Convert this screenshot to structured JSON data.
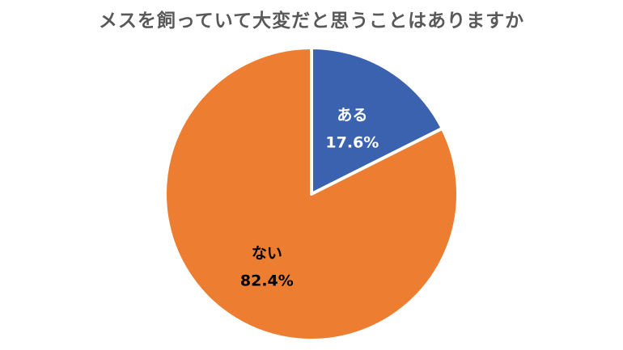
{
  "chart_data": {
    "type": "pie",
    "title": "メスを飼っていて大変だと思うことはありますか",
    "slices": [
      {
        "label": "ある",
        "value": 17.6,
        "value_label": "17.6%",
        "color": "#3b62ae",
        "text_color": "#ffffff"
      },
      {
        "label": "ない",
        "value": 82.4,
        "value_label": "82.4%",
        "color": "#ed7d31",
        "text_color": "#000000"
      }
    ],
    "start_angle": "12 o'clock",
    "direction": "clockwise",
    "legend": "none"
  }
}
